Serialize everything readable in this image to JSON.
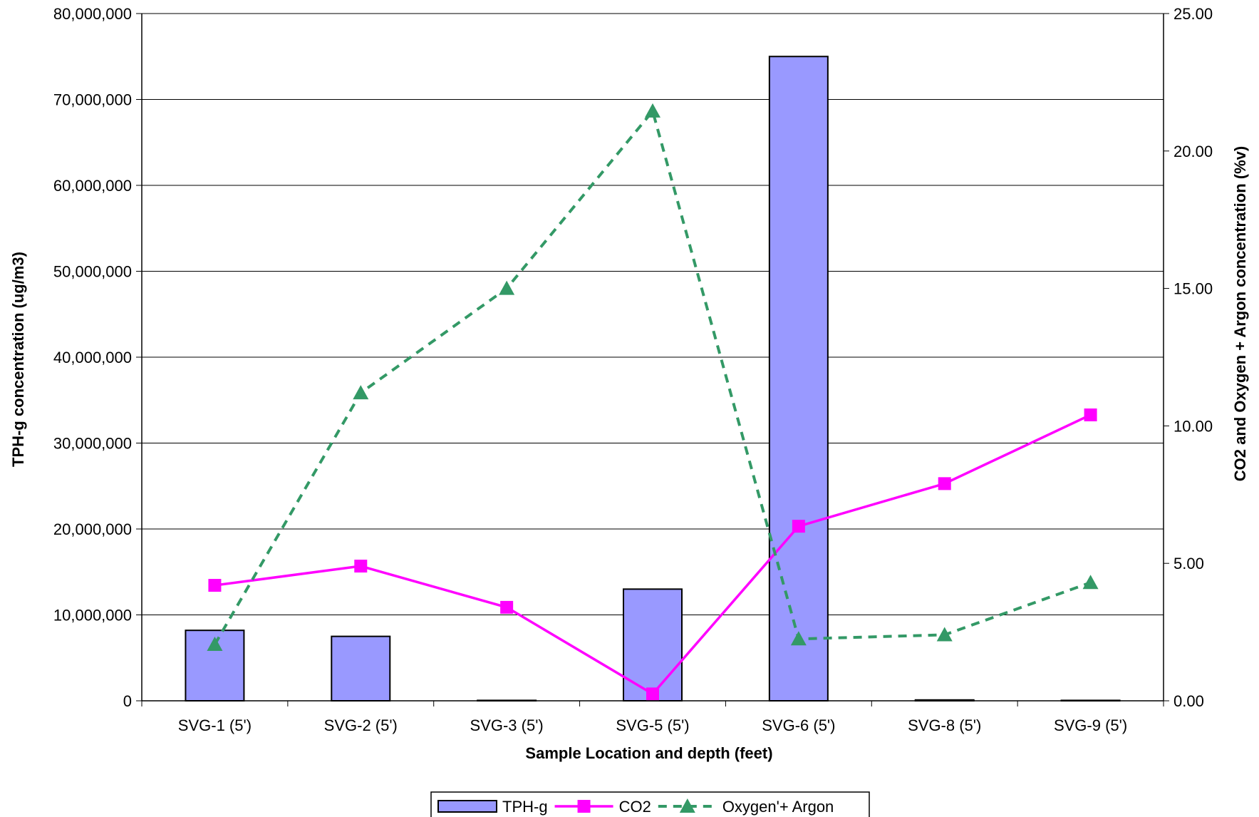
{
  "chart_data": {
    "type": "bar",
    "categories": [
      "SVG-1 (5')",
      "SVG-2 (5')",
      "SVG-3 (5')",
      "SVG-5 (5')",
      "SVG-6 (5')",
      "SVG-8 (5')",
      "SVG-9 (5')"
    ],
    "xlabel": "Sample Location and depth (feet)",
    "ylabel_left": "TPH-g concentration (ug/m3)",
    "ylabel_right": "CO2 and Oxygen + Argon concentration (%v)",
    "ylim_left": [
      0,
      80000000
    ],
    "ylim_right": [
      0,
      25
    ],
    "yticks_left": [
      "0",
      "10,000,000",
      "20,000,000",
      "30,000,000",
      "40,000,000",
      "50,000,000",
      "60,000,000",
      "70,000,000",
      "80,000,000"
    ],
    "yticks_right": [
      "0.00",
      "5.00",
      "10.00",
      "15.00",
      "20.00",
      "25.00"
    ],
    "grid": true,
    "legend_position": "bottom",
    "series": [
      {
        "name": "TPH-g",
        "type": "bar",
        "axis": "left",
        "color": "#9999FF",
        "values": [
          8200000,
          7500000,
          50000,
          13000000,
          75000000,
          100000,
          50000
        ]
      },
      {
        "name": "CO2",
        "type": "line",
        "axis": "right",
        "color": "#FF00FF",
        "marker": "square",
        "values": [
          4.2,
          4.9,
          3.4,
          0.25,
          6.35,
          7.9,
          10.4
        ]
      },
      {
        "name": "Oxygen'+ Argon",
        "type": "line",
        "axis": "right",
        "color": "#339966",
        "marker": "triangle",
        "dashed": true,
        "values": [
          2.05,
          11.2,
          15.0,
          21.45,
          2.25,
          2.4,
          4.3
        ]
      }
    ]
  }
}
